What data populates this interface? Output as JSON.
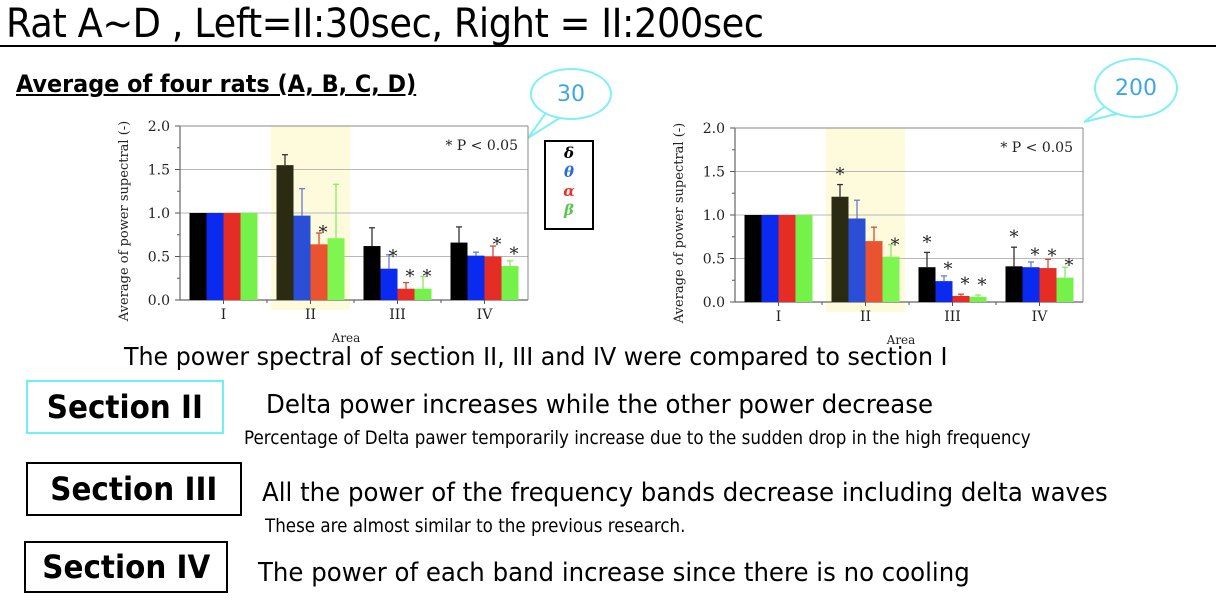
{
  "slide": {
    "title": "Rat A~D , Left=II:30sec, Right = II:200sec",
    "subtitle": "Average of four rats (A, B, C, D)",
    "bubbles": {
      "left": "30",
      "right": "200"
    },
    "legend": [
      {
        "symbol": "δ",
        "color": "#000000"
      },
      {
        "symbol": "θ",
        "color": "#2a6ad6"
      },
      {
        "symbol": "α",
        "color": "#e8312a"
      },
      {
        "symbol": "β",
        "color": "#5cc552"
      }
    ],
    "caption": "The power spectral of section II, III and IV were compared to section I",
    "sections": [
      {
        "label": "Section II",
        "main": "Delta power increases while the other power decrease",
        "note": "Percentage of Delta pawer temporarily increase due to the sudden drop in the high frequency",
        "border": "#6ef0f5"
      },
      {
        "label": "Section III",
        "main": "All the power of the frequency bands decrease including delta waves",
        "note": "These are almost similar to the previous research.",
        "border": "#000000"
      },
      {
        "label": "Section IV",
        "main": "The power of each band increase since there is no cooling",
        "note": "",
        "border": "#000000"
      }
    ]
  },
  "colors": {
    "delta": "#000000",
    "theta": "#0a2af0",
    "alpha": "#e52d25",
    "beta": "#74f24a",
    "highlight": "#fdfbdc",
    "bubble_border": "#7ff0f5",
    "bubble_text": "#3ea6e6"
  },
  "chart_data": [
    {
      "type": "bar",
      "title": "II:30sec",
      "xlabel": "Area",
      "ylabel": "Average of power supectral (-)",
      "ylim": [
        0,
        2.0
      ],
      "yticks": [
        "0.0",
        "0.5",
        "1.0",
        "1.5",
        "2.0"
      ],
      "categories": [
        "I",
        "II",
        "III",
        "IV"
      ],
      "annotation": "* P < 0.05",
      "highlight_category": "II",
      "series": [
        {
          "name": "δ",
          "color": "#000000",
          "values": [
            1.0,
            1.55,
            0.62,
            0.66
          ],
          "errors": [
            0,
            0.12,
            0.21,
            0.18
          ],
          "significant": [
            false,
            false,
            false,
            false
          ]
        },
        {
          "name": "θ",
          "color": "#0a2af0",
          "values": [
            1.0,
            0.97,
            0.36,
            0.51
          ],
          "errors": [
            0,
            0.31,
            0.16,
            0.04
          ],
          "significant": [
            false,
            false,
            true,
            false
          ]
        },
        {
          "name": "α",
          "color": "#e52d25",
          "values": [
            1.0,
            0.64,
            0.13,
            0.5
          ],
          "errors": [
            0,
            0.13,
            0.07,
            0.12
          ],
          "significant": [
            false,
            true,
            true,
            true
          ]
        },
        {
          "name": "β",
          "color": "#74f24a",
          "values": [
            1.0,
            0.71,
            0.13,
            0.39
          ],
          "errors": [
            0,
            0.62,
            0.14,
            0.06
          ],
          "significant": [
            false,
            false,
            true,
            true
          ]
        }
      ]
    },
    {
      "type": "bar",
      "title": "II:200sec",
      "xlabel": "Area",
      "ylabel": "Average of power supectral (-)",
      "ylim": [
        0,
        2.0
      ],
      "yticks": [
        "0.0",
        "0.5",
        "1.0",
        "1.5",
        "2.0"
      ],
      "categories": [
        "I",
        "II",
        "III",
        "IV"
      ],
      "annotation": "* P < 0.05",
      "highlight_category": "II",
      "series": [
        {
          "name": "δ",
          "color": "#000000",
          "values": [
            1.0,
            1.21,
            0.4,
            0.41
          ],
          "errors": [
            0,
            0.14,
            0.17,
            0.22
          ],
          "significant": [
            false,
            true,
            true,
            true
          ]
        },
        {
          "name": "θ",
          "color": "#0a2af0",
          "values": [
            1.0,
            0.96,
            0.24,
            0.4
          ],
          "errors": [
            0,
            0.21,
            0.06,
            0.06
          ],
          "significant": [
            false,
            false,
            true,
            true
          ]
        },
        {
          "name": "α",
          "color": "#e52d25",
          "values": [
            1.0,
            0.7,
            0.07,
            0.39
          ],
          "errors": [
            0,
            0.16,
            0.02,
            0.1
          ],
          "significant": [
            false,
            false,
            true,
            true
          ]
        },
        {
          "name": "β",
          "color": "#74f24a",
          "values": [
            1.0,
            0.52,
            0.06,
            0.28
          ],
          "errors": [
            0,
            0.14,
            0.02,
            0.12
          ],
          "significant": [
            false,
            true,
            true,
            true
          ]
        }
      ]
    }
  ]
}
